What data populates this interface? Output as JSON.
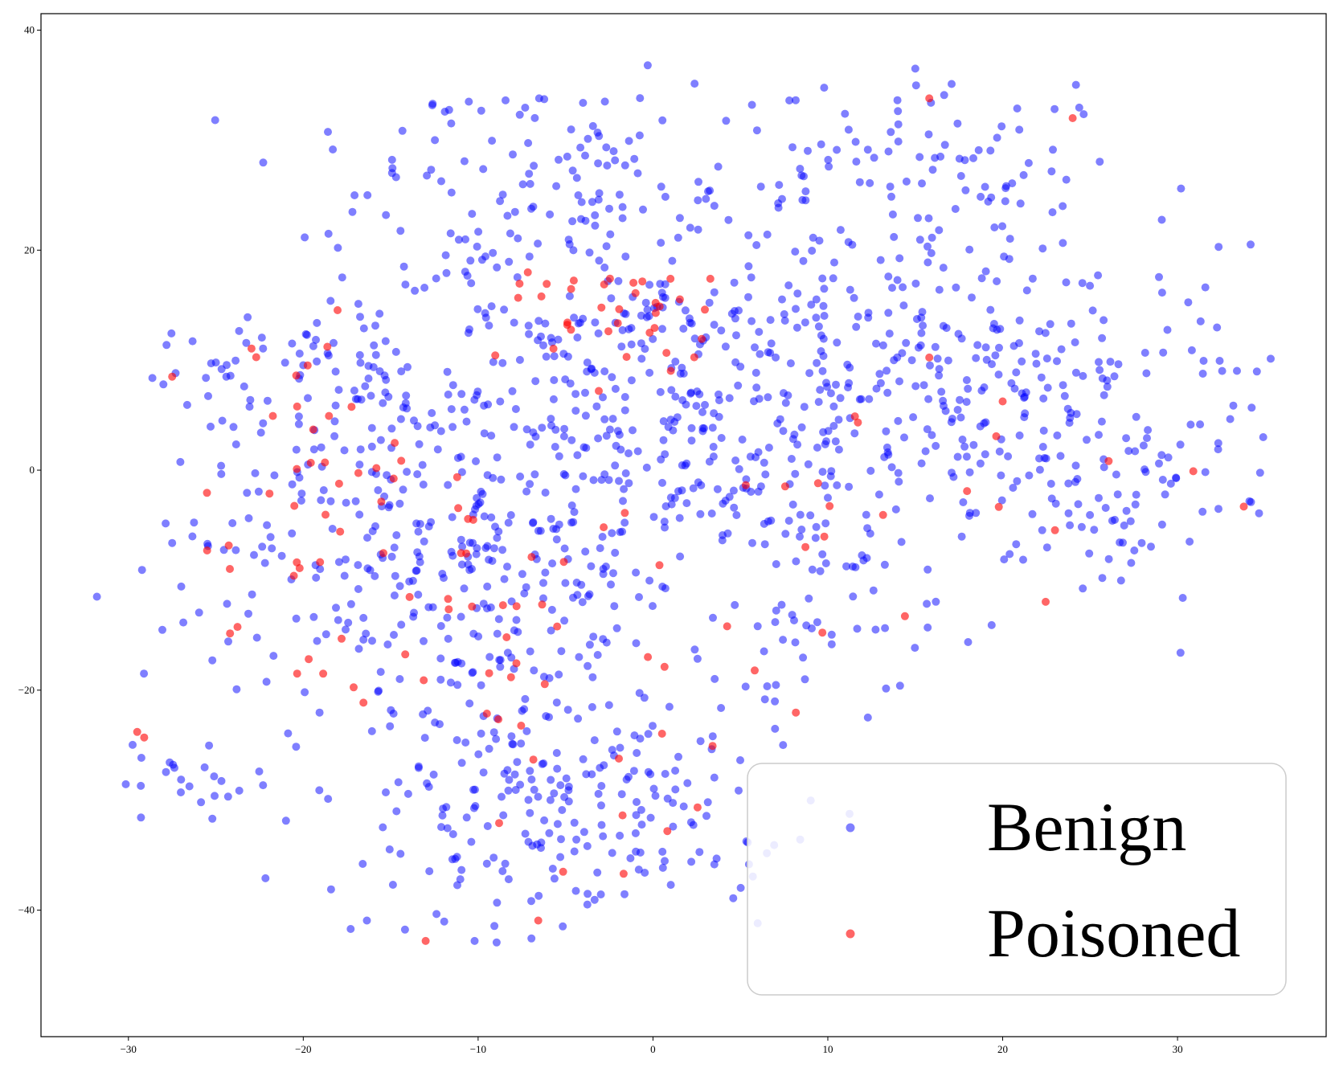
{
  "chart_data": {
    "type": "scatter",
    "title": "",
    "xlabel": "",
    "ylabel": "",
    "xlim": [
      -35,
      38.5
    ],
    "ylim": [
      -51.5,
      41.5
    ],
    "xticks": [
      -30,
      -20,
      -10,
      0,
      10,
      20,
      30
    ],
    "yticks": [
      -40,
      -20,
      0,
      20,
      40
    ],
    "xtick_labels": [
      "−30",
      "−20",
      "−10",
      "0",
      "10",
      "20",
      "30"
    ],
    "ytick_labels": [
      "−40",
      "−20",
      "0",
      "20",
      "40"
    ],
    "grid": false,
    "legend": {
      "placement": "lower-right"
    },
    "series": [
      {
        "name": "Benign",
        "color": "#0000ff",
        "alpha": 0.5,
        "generated": true,
        "seed": 17,
        "count": 1650,
        "clusters": [
          {
            "cx": -22,
            "cy": 10,
            "sx": 4,
            "sy": 3,
            "weight": 4
          },
          {
            "cx": -15,
            "cy": -2,
            "sx": 6,
            "sy": 8,
            "weight": 14
          },
          {
            "cx": -10,
            "cy": -12,
            "sx": 5,
            "sy": 9,
            "weight": 14
          },
          {
            "cx": -8,
            "cy": -30,
            "sx": 6,
            "sy": 7,
            "weight": 12
          },
          {
            "cx": -12,
            "cy": 25,
            "sx": 5,
            "sy": 5,
            "weight": 5
          },
          {
            "cx": -3,
            "cy": 28,
            "sx": 4,
            "sy": 5,
            "weight": 5
          },
          {
            "cx": -3,
            "cy": 8,
            "sx": 6,
            "sy": 8,
            "weight": 14
          },
          {
            "cx": 6,
            "cy": 5,
            "sx": 6,
            "sy": 9,
            "weight": 12
          },
          {
            "cx": 14,
            "cy": 10,
            "sx": 7,
            "sy": 8,
            "weight": 12
          },
          {
            "cx": 15,
            "cy": 28,
            "sx": 5,
            "sy": 5,
            "weight": 6
          },
          {
            "cx": 22,
            "cy": 6,
            "sx": 6,
            "sy": 7,
            "weight": 9
          },
          {
            "cx": 9,
            "cy": -10,
            "sx": 5,
            "sy": 6,
            "weight": 6
          },
          {
            "cx": -27,
            "cy": -28,
            "sx": 2,
            "sy": 2,
            "weight": 1.5
          },
          {
            "cx": 1,
            "cy": -32,
            "sx": 4,
            "sy": 5,
            "weight": 4
          },
          {
            "cx": 33,
            "cy": 8,
            "sx": 2,
            "sy": 8,
            "weight": 1.5
          },
          {
            "cx": -25,
            "cy": -12,
            "sx": 3,
            "sy": 6,
            "weight": 2
          },
          {
            "cx": 26,
            "cy": -4,
            "sx": 3,
            "sy": 4,
            "weight": 3
          }
        ],
        "points": [
          [
            -31.8,
            -11.5
          ],
          [
            -28,
            7.8
          ],
          [
            -24.7,
            0.4
          ],
          [
            34.9,
            3
          ],
          [
            34.2,
            -2.9
          ],
          [
            30.2,
            25.6
          ],
          [
            15,
            36.5
          ],
          [
            -0.3,
            36.8
          ]
        ]
      },
      {
        "name": "Poisoned",
        "color": "#ff0000",
        "alpha": 0.6,
        "generated": true,
        "seed": 91,
        "count": 150,
        "clusters": [
          {
            "cx": -18,
            "cy": 0,
            "sx": 4,
            "sy": 9,
            "weight": 6
          },
          {
            "cx": -1,
            "cy": 15,
            "sx": 3,
            "sy": 3,
            "weight": 5
          },
          {
            "cx": -10,
            "cy": -15,
            "sx": 6,
            "sy": 10,
            "weight": 5
          },
          {
            "cx": 18,
            "cy": -3,
            "sx": 8,
            "sy": 8,
            "weight": 3
          },
          {
            "cx": 0,
            "cy": -30,
            "sx": 6,
            "sy": 8,
            "weight": 3
          }
        ],
        "points": [
          [
            -27.5,
            8.5
          ],
          [
            -29.5,
            -23.8
          ],
          [
            -29.1,
            -24.3
          ],
          [
            24,
            32
          ],
          [
            -13,
            -42.8
          ],
          [
            15.8,
            33.8
          ],
          [
            30.9,
            -0.1
          ],
          [
            -3.1,
            7.2
          ],
          [
            1,
            17.4
          ],
          [
            -20.4,
            8.6
          ]
        ]
      }
    ]
  }
}
